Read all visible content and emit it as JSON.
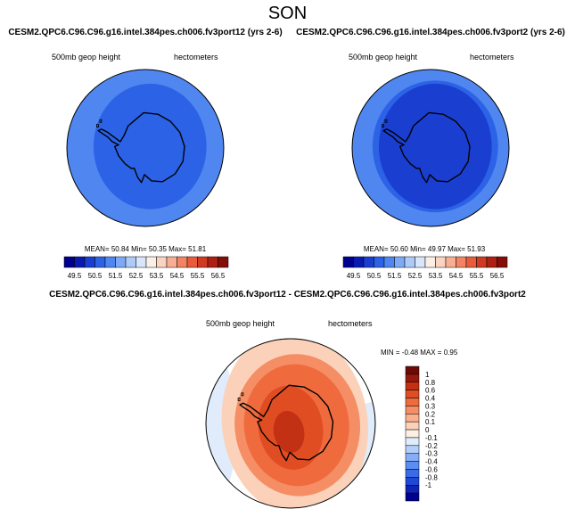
{
  "figure_title": "SON",
  "colors": {
    "abs": [
      "#00008f",
      "#0a1ab0",
      "#1a3fd0",
      "#2c62e6",
      "#4f86f0",
      "#7eaaf5",
      "#aecbf8",
      "#d7e6fb",
      "#fcefe6",
      "#fbd3c1",
      "#f7ae92",
      "#f38463",
      "#e85c3b",
      "#d03a22",
      "#ac2112",
      "#850d08"
    ],
    "diff": [
      "#00008f",
      "#0d24b5",
      "#1f48d6",
      "#3a6ce8",
      "#5b8df2",
      "#85aef6",
      "#b3cff9",
      "#e0ecfb",
      "#fdf0e2",
      "#fbd2b9",
      "#f8b08e",
      "#f58d65",
      "#ef6b3e",
      "#e14d23",
      "#c23114",
      "#97190b",
      "#6e0a05"
    ],
    "land_outline": "#000000",
    "panel_border": "#000000"
  },
  "chart_data": [
    {
      "type": "heatmap",
      "projection": "south-polar-stereographic",
      "title": "CESM2.QPC6.C96.C96.g16.intel.384pes.ch006.fv3port12 (yrs 2-6)",
      "left_label": "500mb geop height",
      "right_label": "hectometers",
      "stats_text": "MEAN= 50.84  Min= 50.35  Max= 51.81",
      "stats": {
        "mean": 50.84,
        "min": 50.35,
        "max": 51.81
      },
      "contour_levels": [
        49.5,
        50.0,
        50.5,
        51.0,
        51.5,
        52.0,
        52.5,
        53.0,
        53.5,
        54.0,
        54.5,
        55.0,
        55.5,
        56.0,
        56.5
      ],
      "colorbar_tick_labels": [
        "49.5",
        "50.5",
        "51.5",
        "52.5",
        "53.5",
        "54.5",
        "55.5",
        "56.5"
      ],
      "colorbar_orientation": "horizontal",
      "field_layers": [
        {
          "level": 51.0,
          "region": "disk-edge"
        },
        {
          "level": 50.5,
          "region": "antarctic-interior"
        }
      ]
    },
    {
      "type": "heatmap",
      "projection": "south-polar-stereographic",
      "title": "CESM2.QPC6.C96.C96.g16.intel.384pes.ch006.fv3port2 (yrs 2-6)",
      "left_label": "500mb geop height",
      "right_label": "hectometers",
      "stats_text": "MEAN= 50.60  Min= 49.97  Max= 51.93",
      "stats": {
        "mean": 50.6,
        "min": 49.97,
        "max": 51.93
      },
      "contour_levels": [
        49.5,
        50.0,
        50.5,
        51.0,
        51.5,
        52.0,
        52.5,
        53.0,
        53.5,
        54.0,
        54.5,
        55.0,
        55.5,
        56.0,
        56.5
      ],
      "colorbar_tick_labels": [
        "49.5",
        "50.5",
        "51.5",
        "52.5",
        "53.5",
        "54.5",
        "55.5",
        "56.5"
      ],
      "colorbar_orientation": "horizontal",
      "field_layers": [
        {
          "level": 51.0,
          "region": "disk-edge"
        },
        {
          "level": 50.5,
          "region": "ring"
        },
        {
          "level": 50.0,
          "region": "antarctic-interior"
        }
      ]
    },
    {
      "type": "heatmap",
      "projection": "south-polar-stereographic",
      "title": "CESM2.QPC6.C96.C96.g16.intel.384pes.ch006.fv3port12 - CESM2.QPC6.C96.C96.g16.intel.384pes.ch006.fv3port2",
      "left_label": "500mb geop height",
      "right_label": "hectometers",
      "stats_text": "MIN = -0.48  MAX =  0.95",
      "stats": {
        "min": -0.48,
        "max": 0.95
      },
      "contour_levels": [
        -1,
        -0.8,
        -0.6,
        -0.4,
        -0.3,
        -0.2,
        -0.1,
        0,
        0.1,
        0.2,
        0.3,
        0.4,
        0.6,
        0.8,
        1
      ],
      "colorbar_tick_labels": [
        "1",
        "0.8",
        "0.6",
        "0.4",
        "0.3",
        "0.2",
        "0.1",
        "0",
        "-0.1",
        "-0.2",
        "-0.3",
        "-0.4",
        "-0.6",
        "-0.8",
        "-1"
      ],
      "colorbar_orientation": "vertical",
      "field_layers": [
        {
          "level": -0.1,
          "region": "west-lobe"
        },
        {
          "level": -0.1,
          "region": "east-lobe"
        },
        {
          "level": 0.1,
          "region": "wide-band"
        },
        {
          "level": 0.3,
          "region": "positive-lobe-outer"
        },
        {
          "level": 0.4,
          "region": "positive-lobe"
        },
        {
          "level": 0.6,
          "region": "positive-core"
        },
        {
          "level": 0.8,
          "region": "positive-peak"
        }
      ]
    }
  ]
}
